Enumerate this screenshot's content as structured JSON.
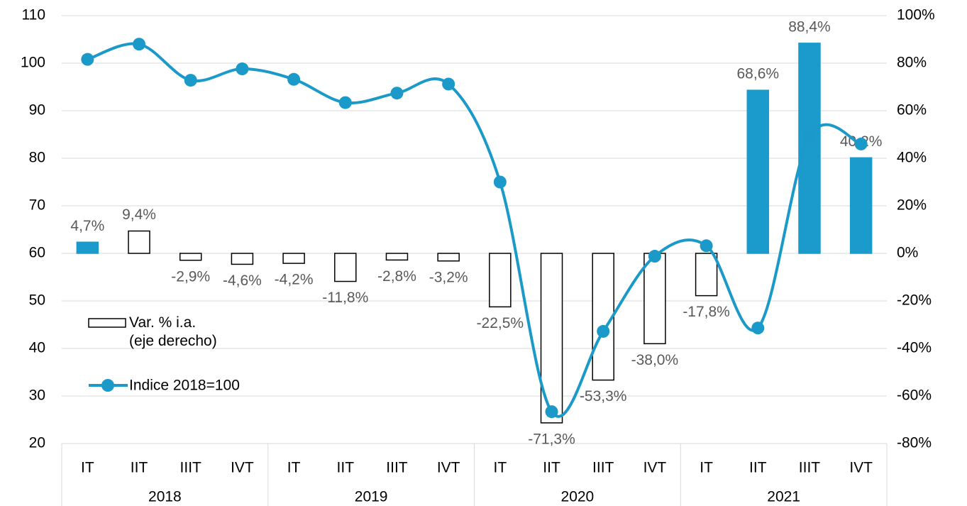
{
  "chart_data": {
    "type": "combo",
    "categories": [
      "IT",
      "IIT",
      "IIIT",
      "IVT",
      "IT",
      "IIT",
      "IIIT",
      "IVT",
      "IT",
      "IIT",
      "IIIT",
      "IVT",
      "IT",
      "IIT",
      "IIIT",
      "IVT"
    ],
    "groups": [
      "2018",
      "2019",
      "2020",
      "2021"
    ],
    "series": [
      {
        "name": "Var. % i.a. (eje derecho)",
        "type": "bar",
        "axis": "y2",
        "values": [
          4.7,
          9.4,
          -2.9,
          -4.6,
          -4.2,
          -11.8,
          -2.8,
          -3.2,
          -22.5,
          -71.3,
          -53.3,
          -38.0,
          -17.8,
          68.6,
          88.4,
          40.2
        ],
        "value_labels": [
          "4,7%",
          "9,4%",
          "-2,9%",
          "-4,6%",
          "-4,2%",
          "-11,8%",
          "-2,8%",
          "-3,2%",
          "-22,5%",
          "-71,3%",
          "-53,3%",
          "-38,0%",
          "-17,8%",
          "68,6%",
          "88,4%",
          "40,2%"
        ],
        "colors": [
          "#1a9bcc",
          "#ffffff",
          "#ffffff",
          "#ffffff",
          "#ffffff",
          "#ffffff",
          "#ffffff",
          "#ffffff",
          "#ffffff",
          "#ffffff",
          "#ffffff",
          "#ffffff",
          "#ffffff",
          "#1a9bcc",
          "#1a9bcc",
          "#1a9bcc"
        ]
      },
      {
        "name": "Indice 2018=100",
        "type": "line",
        "color": "#1b9ac9",
        "values": [
          100.8,
          104,
          96.4,
          98.8,
          96.6,
          91.7,
          93.7,
          95.6,
          75,
          26.7,
          43.6,
          59.4,
          61.6,
          44.3,
          84.5,
          83
        ]
      }
    ],
    "ylim": [
      20,
      110
    ],
    "yticks": [
      20,
      30,
      40,
      50,
      60,
      70,
      80,
      90,
      100,
      110
    ],
    "y2lim": [
      -80,
      100
    ],
    "y2ticks": [
      {
        "value": -80,
        "label": "-80%"
      },
      {
        "value": -60,
        "label": "-60%"
      },
      {
        "value": -40,
        "label": "-40%"
      },
      {
        "value": -20,
        "label": "-20%"
      },
      {
        "value": 0,
        "label": "0%"
      },
      {
        "value": 20,
        "label": "20%"
      },
      {
        "value": 40,
        "label": "40%"
      },
      {
        "value": 60,
        "label": "60%"
      },
      {
        "value": 80,
        "label": "80%"
      },
      {
        "value": 100,
        "label": "100%"
      }
    ],
    "grid": true
  }
}
